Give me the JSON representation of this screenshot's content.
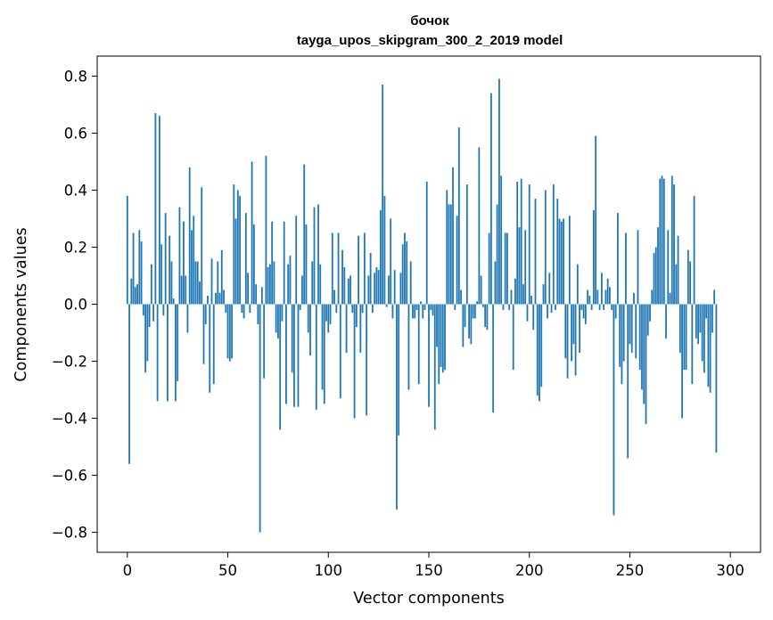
{
  "chart_data": {
    "type": "bar",
    "title": "бочок",
    "subtitle": "tayga_upos_skipgram_300_2_2019 model",
    "xlabel": "Vector components",
    "ylabel": "Components values",
    "xlim": [
      -15,
      315
    ],
    "ylim": [
      -0.87,
      0.87
    ],
    "x_ticks": [
      0,
      50,
      100,
      150,
      200,
      250,
      300
    ],
    "x_tick_labels": [
      "0",
      "50",
      "100",
      "150",
      "200",
      "250",
      "300"
    ],
    "y_ticks": [
      -0.8,
      -0.6,
      -0.4,
      -0.2,
      0.0,
      0.2,
      0.4,
      0.6,
      0.8
    ],
    "y_tick_labels": [
      "−0.8",
      "−0.6",
      "−0.4",
      "−0.2",
      "0.0",
      "0.2",
      "0.4",
      "0.6",
      "0.8"
    ],
    "grid": false,
    "bar_color": "#1f77b4",
    "series": [
      {
        "values": [
          0.38,
          -0.56,
          0.09,
          0.25,
          0.06,
          0.07,
          0.26,
          0.22,
          -0.04,
          -0.24,
          -0.2,
          -0.08,
          0.14,
          -0.06,
          0.67,
          -0.34,
          0.66,
          0.21,
          -0.04,
          0.32,
          -0.34,
          0.24,
          0.15,
          0.02,
          -0.34,
          -0.27,
          0.34,
          0.1,
          0.29,
          0.1,
          -0.1,
          0.48,
          0.26,
          0.31,
          0.15,
          0.15,
          0.08,
          0.41,
          -0.21,
          -0.07,
          0.03,
          -0.31,
          0.16,
          -0.28,
          0.04,
          0.15,
          0.04,
          0.19,
          0.05,
          -0.03,
          -0.19,
          -0.2,
          -0.19,
          0.42,
          0.3,
          0.4,
          0.38,
          -0.03,
          -0.05,
          0.32,
          0.11,
          -0.03,
          0.5,
          0.28,
          0.07,
          -0.07,
          -0.8,
          0.06,
          -0.26,
          0.52,
          0.13,
          0.14,
          0.29,
          0.15,
          -0.1,
          -0.12,
          -0.44,
          -0.06,
          0.29,
          -0.35,
          0.14,
          0.17,
          -0.24,
          -0.36,
          0.31,
          -0.36,
          -0.02,
          0.1,
          0.49,
          0.28,
          -0.1,
          -0.18,
          0.15,
          0.34,
          -0.37,
          0.35,
          0.14,
          -0.3,
          -0.35,
          -0.06,
          -0.1,
          -0.07,
          0.25,
          0.05,
          -0.03,
          0.25,
          -0.33,
          0.19,
          0.13,
          -0.17,
          0.09,
          0.1,
          -0.03,
          -0.4,
          -0.08,
          0.24,
          -0.17,
          -0.03,
          0.25,
          -0.39,
          0.1,
          0.18,
          -0.03,
          0.11,
          0.13,
          0.12,
          0.33,
          0.77,
          0.38,
          -0.01,
          0.1,
          0.3,
          -0.05,
          0.12,
          -0.72,
          -0.46,
          0.11,
          0.21,
          0.25,
          0.22,
          -0.3,
          0.15,
          -0.05,
          -0.05,
          -0.02,
          -0.28,
          0.01,
          -0.05,
          -0.02,
          0.43,
          -0.36,
          -0.02,
          -0.04,
          -0.44,
          -0.15,
          -0.28,
          -0.22,
          -0.24,
          -0.23,
          0.4,
          0.35,
          0.35,
          0.48,
          -0.02,
          0.31,
          0.62,
          0.05,
          -0.15,
          -0.08,
          0.42,
          -0.12,
          -0.14,
          -0.05,
          -0.05,
          0.01,
          0.55,
          0.1,
          -0.01,
          -0.08,
          -0.09,
          0.25,
          0.74,
          -0.38,
          0.15,
          0.35,
          0.79,
          0.45,
          -0.02,
          0.25,
          0.25,
          -0.02,
          0.05,
          -0.23,
          0.09,
          0.43,
          0.27,
          0.44,
          0.07,
          0.26,
          -0.06,
          0.42,
          0.03,
          -0.09,
          0.37,
          -0.32,
          -0.34,
          -0.29,
          0.07,
          0.4,
          -0.05,
          0.11,
          -0.03,
          0.42,
          -0.02,
          0.37,
          0.3,
          0.29,
          0.3,
          -0.19,
          -0.26,
          0.31,
          -0.2,
          -0.14,
          -0.25,
          0.14,
          -0.17,
          -0.02,
          -0.05,
          -0.07,
          0.05,
          0.03,
          -0.02,
          0.33,
          0.59,
          0.05,
          -0.02,
          0.11,
          -0.02,
          0.05,
          0.09,
          0.06,
          -0.02,
          -0.74,
          -0.05,
          0.32,
          -0.22,
          -0.28,
          -0.2,
          0.25,
          -0.54,
          -0.14,
          -0.17,
          0.04,
          -0.19,
          0.26,
          -0.23,
          -0.3,
          -0.35,
          -0.42,
          -0.11,
          -0.06,
          0.05,
          0.18,
          0.2,
          0.27,
          0.44,
          0.45,
          0.44,
          -0.12,
          0.26,
          0.04,
          0.45,
          0.42,
          0.14,
          0.24,
          -0.17,
          -0.4,
          -0.23,
          -0.23,
          0.19,
          0.15,
          -0.28,
          0.38,
          -0.12,
          -0.14,
          -0.1,
          -0.2,
          -0.24,
          -0.05,
          -0.29,
          -0.31,
          -0.1,
          0.05,
          -0.52
        ]
      }
    ]
  }
}
